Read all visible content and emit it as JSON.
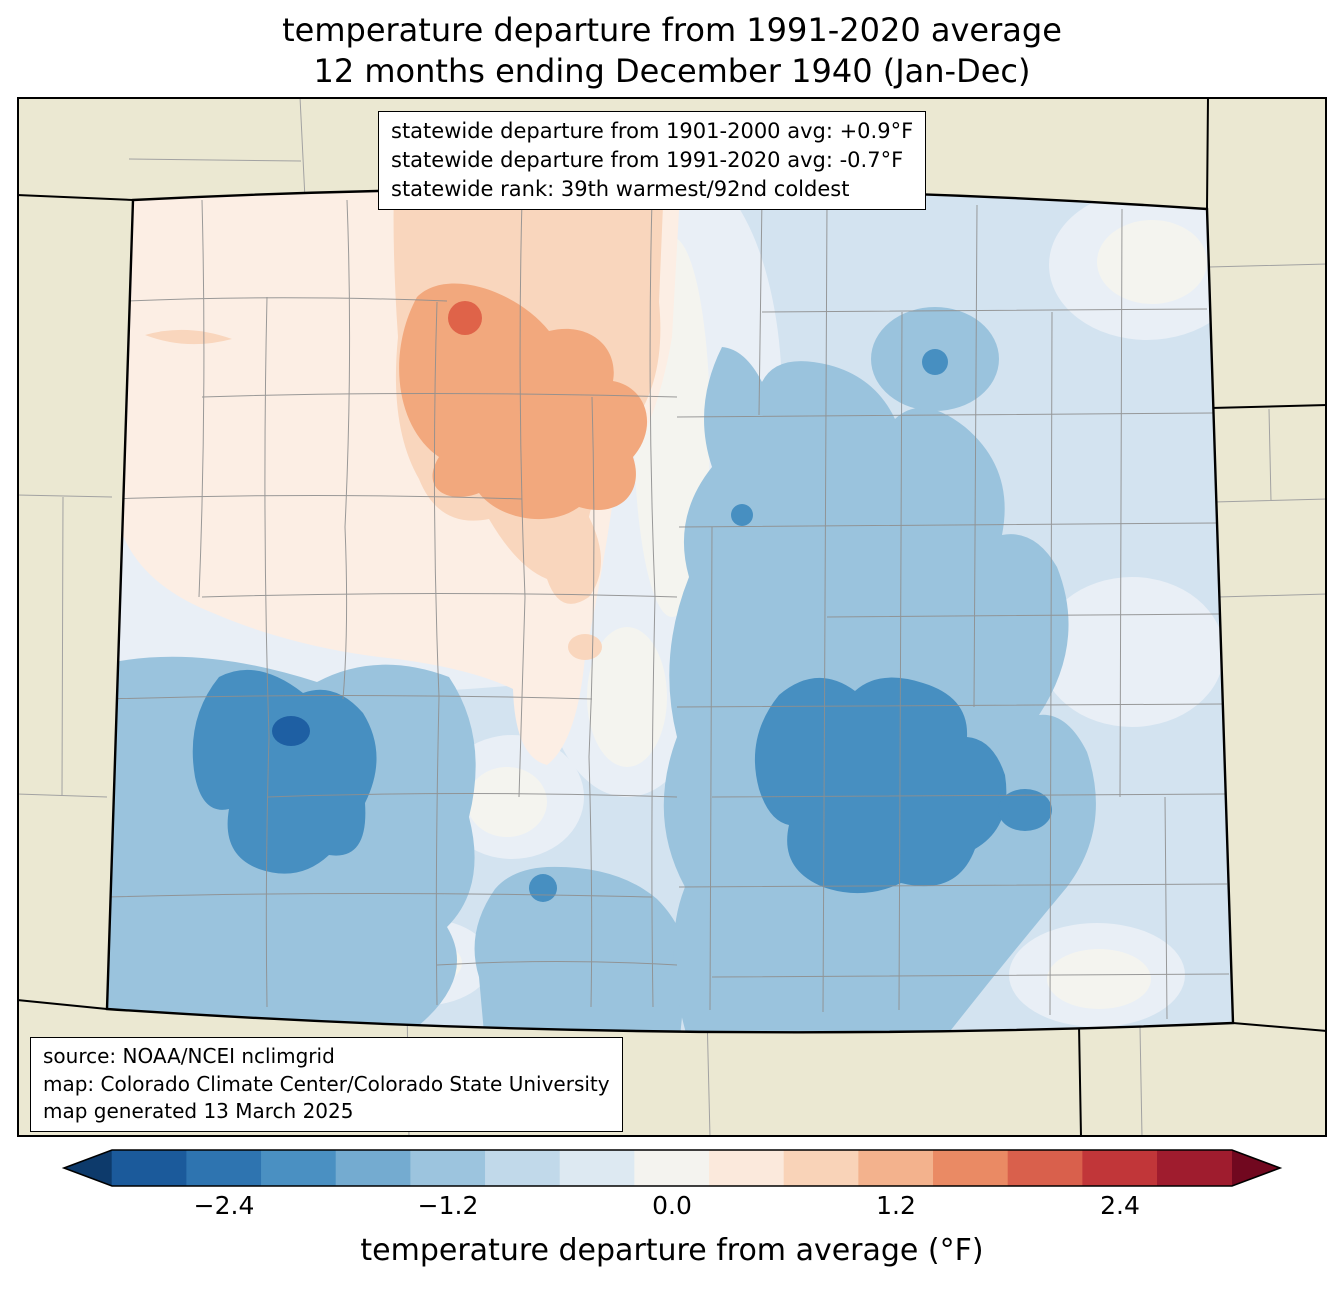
{
  "title": {
    "line1": "temperature departure from 1991-2020 average",
    "line2": "12 months ending December 1940 (Jan-Dec)"
  },
  "stats_box": {
    "line1": "statewide departure from 1901-2000 avg: +0.9°F",
    "line2": "statewide departure from 1991-2020 avg: -0.7°F",
    "line3": "statewide rank: 39th warmest/92nd coldest"
  },
  "source_box": {
    "line1": "source: NOAA/NCEI nclimgrid",
    "line2": "map: Colorado Climate Center/Colorado State University",
    "line3": "map generated 13 March 2025"
  },
  "colorbar": {
    "label": "temperature departure from average (°F)",
    "ticks": [
      "−2.4",
      "−1.2",
      "0.0",
      "1.2",
      "2.4"
    ],
    "tick_values": [
      -2.4,
      -1.2,
      0.0,
      1.2,
      2.4
    ],
    "range": [
      -3.0,
      3.0
    ],
    "segment_colors": [
      "#1b5a9b",
      "#2e74b0",
      "#4a90c2",
      "#74abd0",
      "#9cc4de",
      "#c1d9ea",
      "#dde9f2",
      "#f4f3ef",
      "#fbe9dc",
      "#f9d3b8",
      "#f3b28d",
      "#ea8a64",
      "#d9604c",
      "#c13639",
      "#9f1c2e"
    ],
    "arrow_left_color": "#0d3a6b",
    "arrow_right_color": "#71081f"
  },
  "map": {
    "region": "Colorado",
    "palette": {
      "background_outside": "#ebe8d2",
      "state_base": "#d3e3f0",
      "light_patch": "#e9eff6",
      "near_zero": "#f4f4ef",
      "peach_light": "#fceee4",
      "peach_mid": "#f9d6bd",
      "orange": "#f2a87d",
      "red_dot": "#df6349",
      "blue_mid": "#9ac3dd",
      "blue_dark": "#478fc1",
      "blue_darkest": "#1e5fa3",
      "county_line": "#8f8f8f",
      "border": "#000000"
    }
  }
}
